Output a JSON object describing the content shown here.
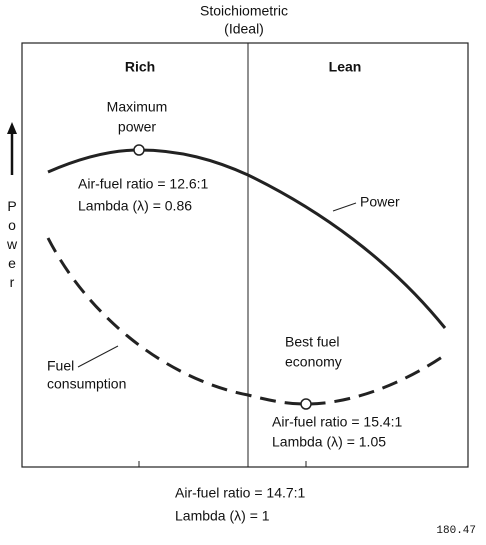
{
  "header": {
    "title": "Stoichiometric",
    "subtitle": "(Ideal)"
  },
  "regions": {
    "left": "Rich",
    "right": "Lean"
  },
  "axis": {
    "y_label": "Power"
  },
  "annotations": {
    "max_power": {
      "label": [
        "Maximum",
        "power"
      ],
      "ratio": "Air-fuel ratio = 12.6:1",
      "lambda": "Lambda (λ) = 0.86"
    },
    "power_curve": "Power",
    "best_economy": {
      "label": [
        "Best fuel",
        "economy"
      ],
      "ratio": "Air-fuel ratio = 15.4:1",
      "lambda": "Lambda (λ) = 1.05"
    },
    "fuel_curve": [
      "Fuel",
      "consumption"
    ],
    "stoichiometric": {
      "ratio": "Air-fuel ratio = 14.7:1",
      "lambda": "Lambda (λ) = 1"
    }
  },
  "figure_id": "180.47"
}
